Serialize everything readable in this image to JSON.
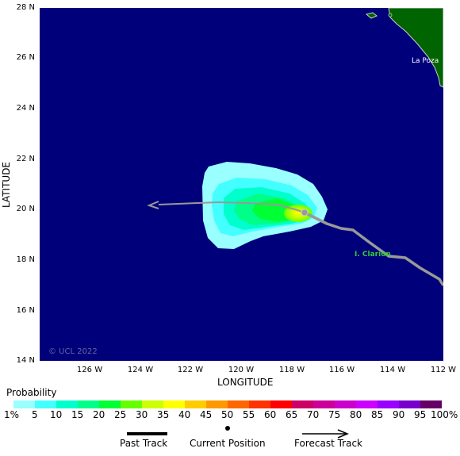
{
  "map": {
    "y_ticks": [
      "28 N",
      "26 N",
      "24 N",
      "22 N",
      "20 N",
      "18 N",
      "16 N",
      "14 N"
    ],
    "x_ticks": [
      "126 W",
      "124 W",
      "122 W",
      "120 W",
      "118 W",
      "116 W",
      "114 W",
      "112 W"
    ],
    "x_axis_title": "LONGITUDE",
    "y_axis_title": "LATITUDE",
    "place_labels": {
      "la_poza": "La Poza",
      "clarion": "I. Clarion"
    },
    "copyright": "© UCL 2022",
    "colors": {
      "ocean": "#00007a",
      "land": "#006400",
      "track": "#999999"
    }
  },
  "legend": {
    "title": "Probability",
    "scale_labels": [
      "1%",
      "5",
      "10",
      "15",
      "20",
      "25",
      "30",
      "35",
      "40",
      "45",
      "50",
      "55",
      "60",
      "65",
      "70",
      "75",
      "80",
      "85",
      "90",
      "95",
      "100%"
    ],
    "scale_colors": [
      "#99ffff",
      "#44ffff",
      "#00ffcc",
      "#00ff88",
      "#00ff33",
      "#66ff00",
      "#ccff00",
      "#ffff00",
      "#ffcc00",
      "#ff9900",
      "#ff6600",
      "#ff3300",
      "#ff0000",
      "#cc0066",
      "#cc0099",
      "#cc00cc",
      "#cc00ff",
      "#9900ff",
      "#7700cc",
      "#6600aa",
      "#660066"
    ],
    "past_track": "Past Track",
    "current_position": "Current Position",
    "forecast_track": "Forecast Track"
  }
}
